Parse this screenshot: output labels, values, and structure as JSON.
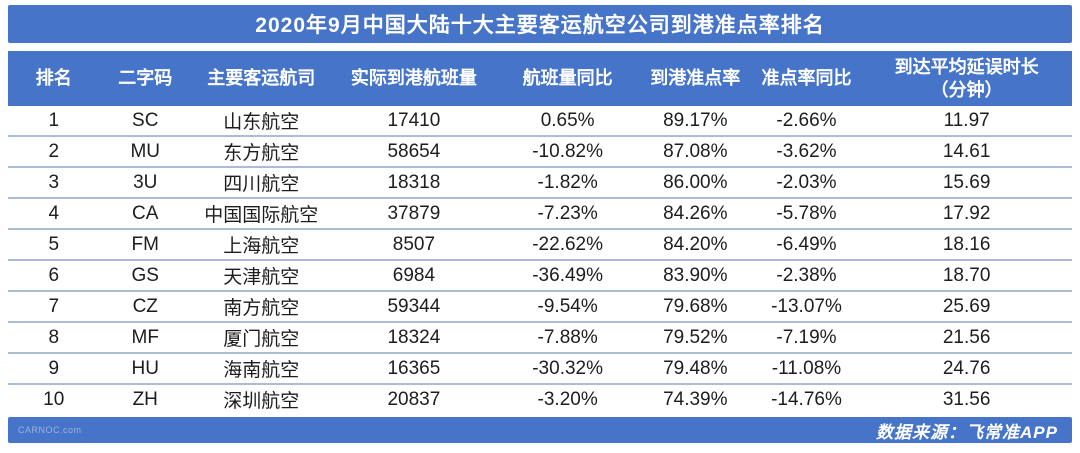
{
  "colors": {
    "bar_blue": "#4674C8",
    "row_divider": "#AABCD8",
    "body_text": "#1D1D1D",
    "header_text": "#FFFFFF"
  },
  "chart_data": {
    "type": "table",
    "title": "2020年9月中国大陆十大主要客运航空公司到港准点率排名",
    "columns": [
      "排名",
      "二字码",
      "主要客运航司",
      "实际到港航班量",
      "航班量同比",
      "到港准点率",
      "准点率同比",
      "到达平均延误时长\n（分钟）"
    ],
    "rows": [
      [
        "1",
        "SC",
        "山东航空",
        "17410",
        "0.65%",
        "89.17%",
        "-2.66%",
        "11.97"
      ],
      [
        "2",
        "MU",
        "东方航空",
        "58654",
        "-10.82%",
        "87.08%",
        "-3.62%",
        "14.61"
      ],
      [
        "3",
        "3U",
        "四川航空",
        "18318",
        "-1.82%",
        "86.00%",
        "-2.03%",
        "15.69"
      ],
      [
        "4",
        "CA",
        "中国国际航空",
        "37879",
        "-7.23%",
        "84.26%",
        "-5.78%",
        "17.92"
      ],
      [
        "5",
        "FM",
        "上海航空",
        "8507",
        "-22.62%",
        "84.20%",
        "-6.49%",
        "18.16"
      ],
      [
        "6",
        "GS",
        "天津航空",
        "6984",
        "-36.49%",
        "83.90%",
        "-2.38%",
        "18.70"
      ],
      [
        "7",
        "CZ",
        "南方航空",
        "59344",
        "-9.54%",
        "79.68%",
        "-13.07%",
        "25.69"
      ],
      [
        "8",
        "MF",
        "厦门航空",
        "18324",
        "-7.88%",
        "79.52%",
        "-7.19%",
        "21.56"
      ],
      [
        "9",
        "HU",
        "海南航空",
        "16365",
        "-30.32%",
        "79.48%",
        "-11.08%",
        "24.76"
      ],
      [
        "10",
        "ZH",
        "深圳航空",
        "20837",
        "-3.20%",
        "74.39%",
        "-14.76%",
        "31.56"
      ]
    ]
  },
  "footer": {
    "source": "数据来源：飞常准APP",
    "watermark": "CARNOC.com"
  }
}
